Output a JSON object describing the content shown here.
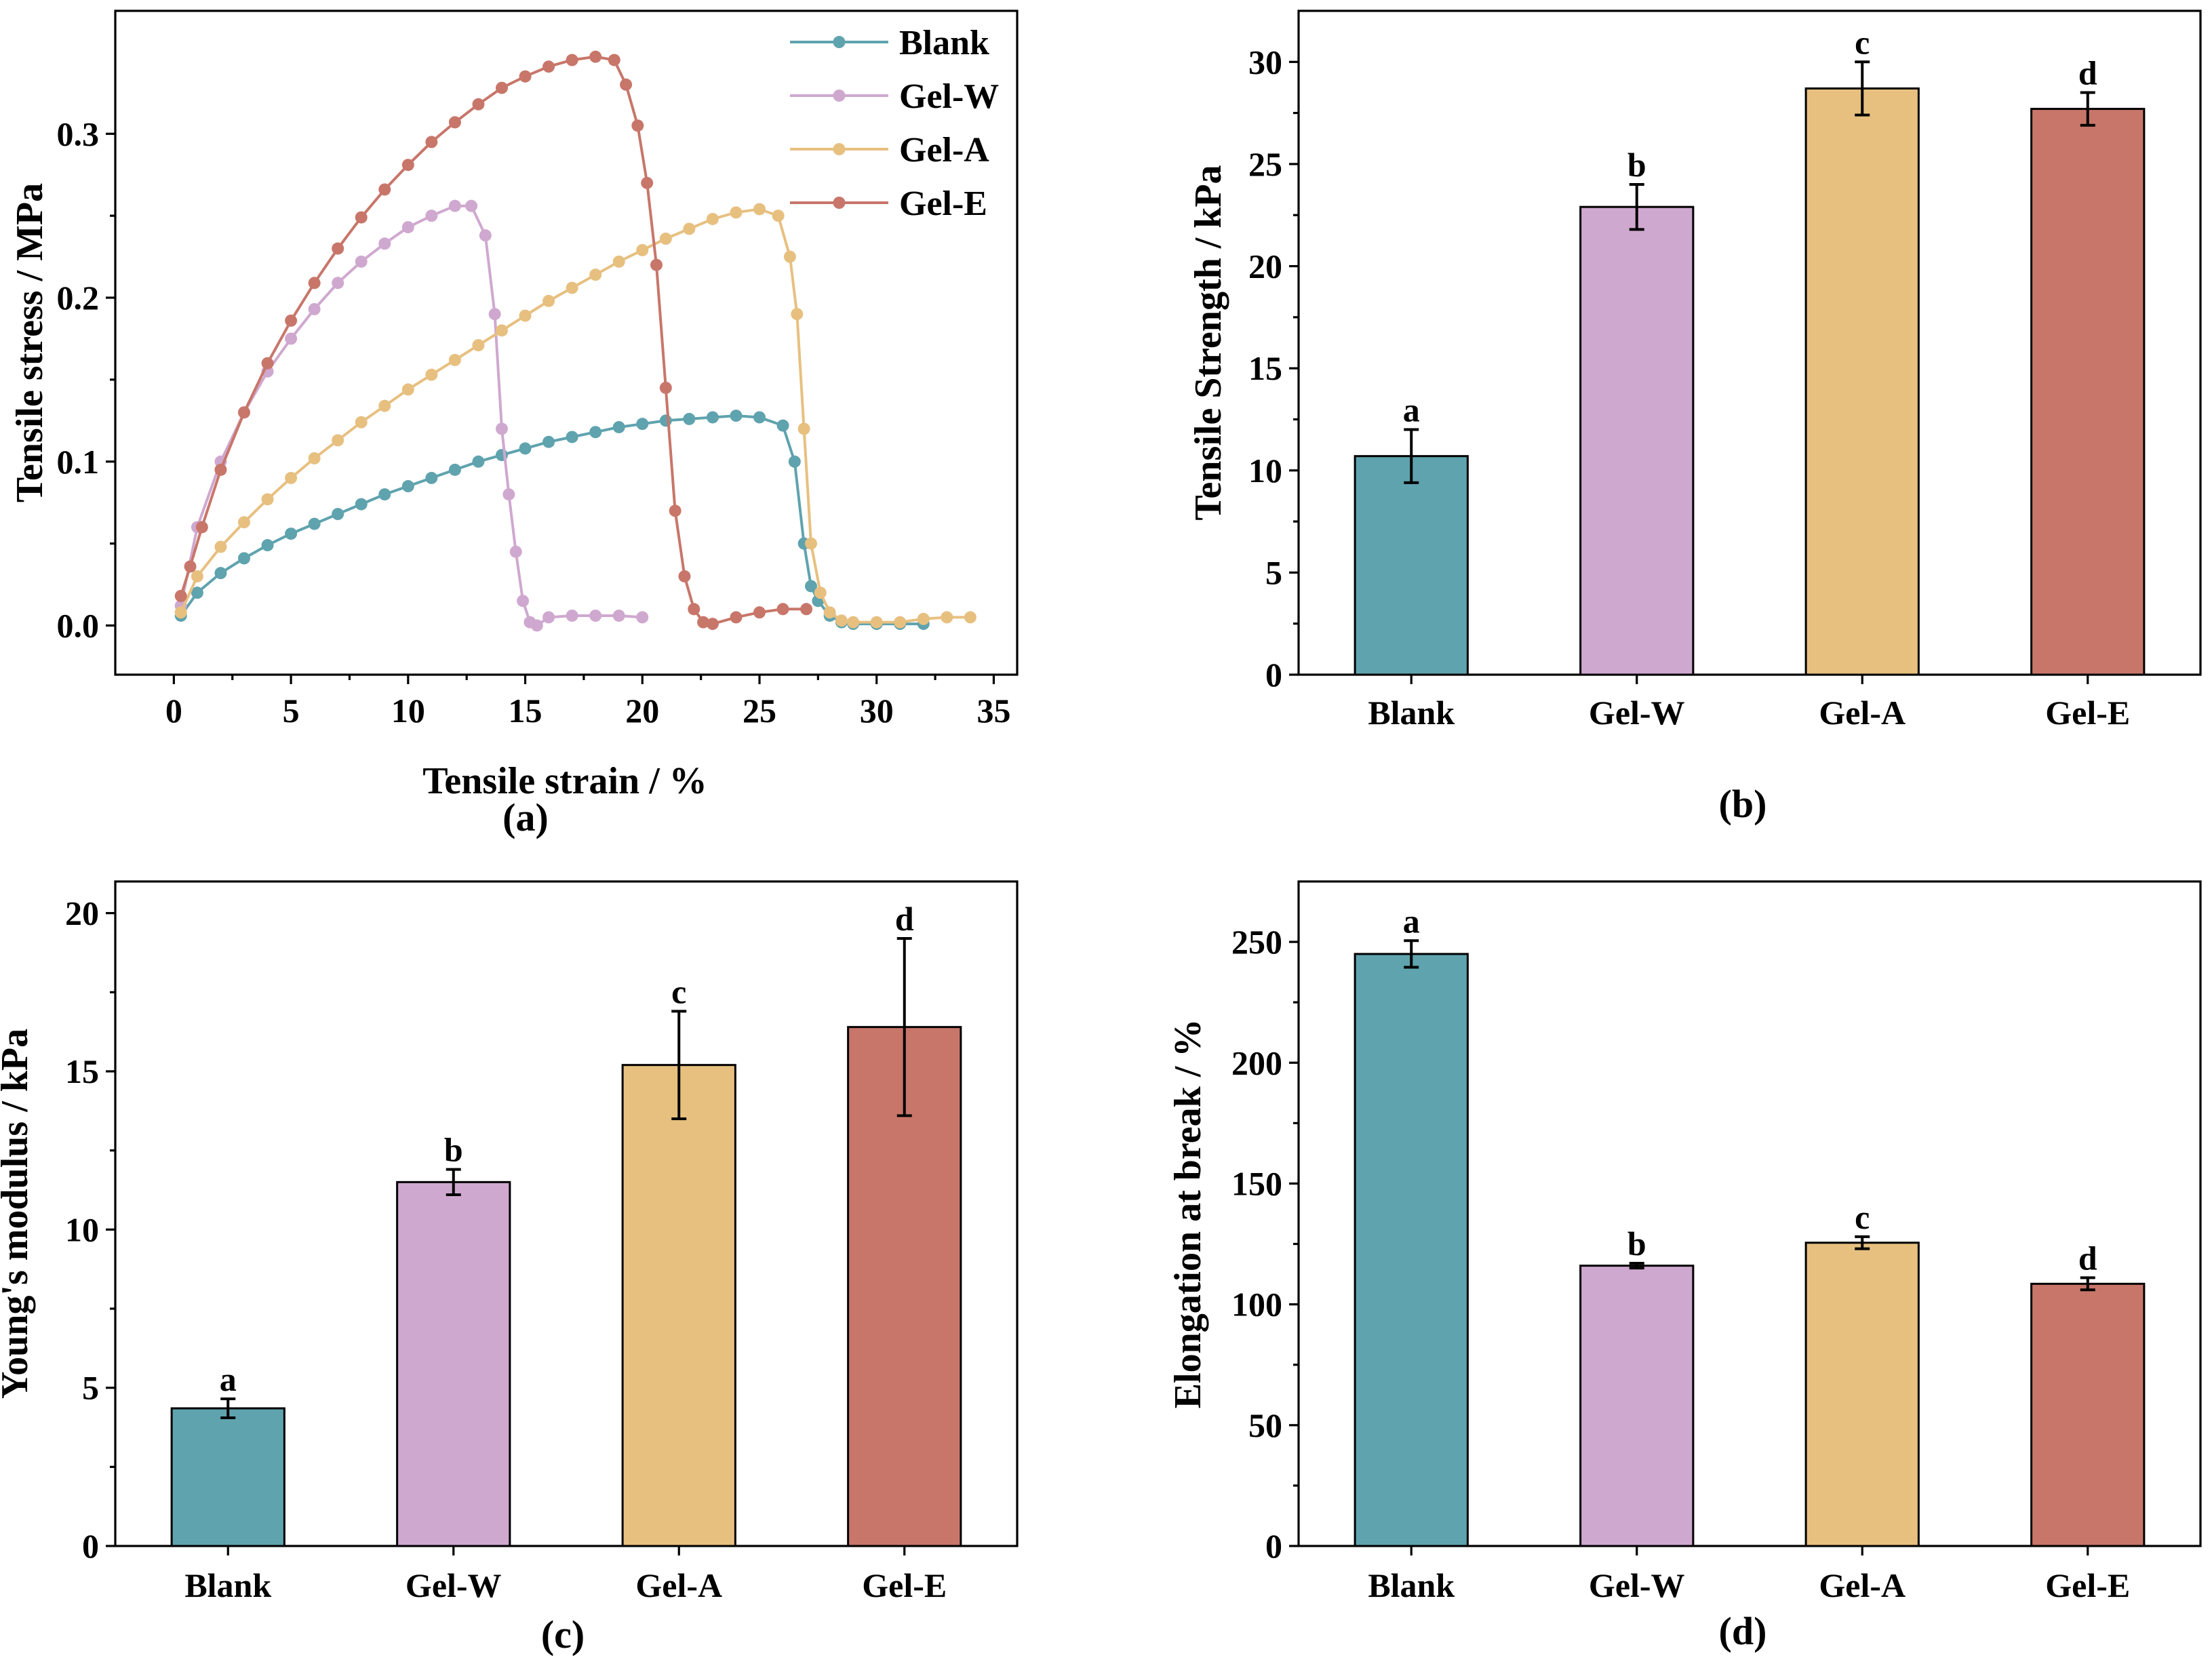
{
  "colors": {
    "Blank": "#5fa3ae",
    "Gel-W": "#cfa8cf",
    "Gel-A": "#e7c080",
    "Gel-E": "#c8766a"
  },
  "chart_data": [
    {
      "id": "a",
      "type": "line",
      "panel_label": "(a)",
      "xlabel": "Tensile strain / %",
      "ylabel": "Tensile stress / MPa",
      "xlim": [
        -2.5,
        36
      ],
      "ylim": [
        -0.03,
        0.375
      ],
      "xticks": [
        0,
        5,
        10,
        15,
        20,
        25,
        30,
        35
      ],
      "yticks": [
        0.0,
        0.1,
        0.2,
        0.3
      ],
      "ytick_labels": [
        "0.0",
        "0.1",
        "0.2",
        "0.3"
      ],
      "legend_position": "top-right",
      "series": [
        {
          "name": "Blank",
          "x": [
            0.3,
            1,
            2,
            3,
            4,
            5,
            6,
            7,
            8,
            9,
            10,
            11,
            12,
            13,
            14,
            15,
            16,
            17,
            18,
            19,
            20,
            21,
            22,
            23,
            24,
            25,
            26,
            26.5,
            26.9,
            27.2,
            27.5,
            28,
            28.5,
            29,
            30,
            31,
            32
          ],
          "y": [
            0.006,
            0.02,
            0.032,
            0.041,
            0.049,
            0.056,
            0.062,
            0.068,
            0.074,
            0.08,
            0.085,
            0.09,
            0.095,
            0.1,
            0.104,
            0.108,
            0.112,
            0.115,
            0.118,
            0.121,
            0.123,
            0.125,
            0.126,
            0.127,
            0.128,
            0.127,
            0.122,
            0.1,
            0.05,
            0.024,
            0.015,
            0.006,
            0.002,
            0.001,
            0.001,
            0.001,
            0.001
          ]
        },
        {
          "name": "Gel-W",
          "x": [
            0.3,
            1,
            2,
            3,
            4,
            5,
            6,
            7,
            8,
            9,
            10,
            11,
            12,
            12.7,
            13.3,
            13.7,
            14.0,
            14.3,
            14.6,
            14.9,
            15.2,
            15.5,
            16,
            17,
            18,
            19,
            20
          ],
          "y": [
            0.012,
            0.06,
            0.1,
            0.13,
            0.155,
            0.175,
            0.193,
            0.209,
            0.222,
            0.233,
            0.243,
            0.25,
            0.256,
            0.256,
            0.238,
            0.19,
            0.12,
            0.08,
            0.045,
            0.015,
            0.002,
            0.0,
            0.005,
            0.006,
            0.006,
            0.006,
            0.005
          ]
        },
        {
          "name": "Gel-A",
          "x": [
            0.3,
            1,
            2,
            3,
            4,
            5,
            6,
            7,
            8,
            9,
            10,
            11,
            12,
            13,
            14,
            15,
            16,
            17,
            18,
            19,
            20,
            21,
            22,
            23,
            24,
            25,
            25.8,
            26.3,
            26.6,
            26.9,
            27.2,
            27.6,
            28,
            28.5,
            29,
            30,
            31,
            32,
            33,
            34
          ],
          "y": [
            0.008,
            0.03,
            0.048,
            0.063,
            0.077,
            0.09,
            0.102,
            0.113,
            0.124,
            0.134,
            0.144,
            0.153,
            0.162,
            0.171,
            0.18,
            0.189,
            0.198,
            0.206,
            0.214,
            0.222,
            0.229,
            0.236,
            0.242,
            0.248,
            0.252,
            0.254,
            0.25,
            0.225,
            0.19,
            0.12,
            0.05,
            0.02,
            0.008,
            0.003,
            0.002,
            0.002,
            0.002,
            0.004,
            0.005,
            0.005
          ]
        },
        {
          "name": "Gel-E",
          "x": [
            0.3,
            0.7,
            1.2,
            2,
            3,
            4,
            5,
            6,
            7,
            8,
            9,
            10,
            11,
            12,
            13,
            14,
            15,
            16,
            17,
            18,
            18.8,
            19.3,
            19.8,
            20.2,
            20.6,
            21,
            21.4,
            21.8,
            22.2,
            22.6,
            23,
            24,
            25,
            26,
            27
          ],
          "y": [
            0.018,
            0.036,
            0.06,
            0.095,
            0.13,
            0.16,
            0.186,
            0.209,
            0.23,
            0.249,
            0.266,
            0.281,
            0.295,
            0.307,
            0.318,
            0.328,
            0.335,
            0.341,
            0.345,
            0.347,
            0.345,
            0.33,
            0.305,
            0.27,
            0.22,
            0.145,
            0.07,
            0.03,
            0.01,
            0.002,
            0.001,
            0.005,
            0.008,
            0.01,
            0.01
          ]
        }
      ]
    },
    {
      "id": "b",
      "type": "bar",
      "panel_label": "(b)",
      "xlabel": "",
      "ylabel": "Tensile Strength  /  kPa",
      "categories": [
        "Blank",
        "Gel-W",
        "Gel-A",
        "Gel-E"
      ],
      "values": [
        10.7,
        22.9,
        28.7,
        27.7
      ],
      "errors": [
        1.3,
        1.1,
        1.3,
        0.8
      ],
      "letters": [
        "a",
        "b",
        "c",
        "d"
      ],
      "ylim": [
        0,
        32.5
      ],
      "yticks": [
        0,
        5,
        10,
        15,
        20,
        25,
        30
      ]
    },
    {
      "id": "c",
      "type": "bar",
      "panel_label": "(c)",
      "xlabel": "",
      "ylabel": "Young's modulus / kPa",
      "categories": [
        "Blank",
        "Gel-W",
        "Gel-A",
        "Gel-E"
      ],
      "values": [
        4.35,
        11.5,
        15.2,
        16.4
      ],
      "errors": [
        0.3,
        0.4,
        1.7,
        2.8
      ],
      "letters": [
        "a",
        "b",
        "c",
        "d"
      ],
      "ylim": [
        0,
        21
      ],
      "yticks": [
        0,
        5,
        10,
        15,
        20
      ]
    },
    {
      "id": "d",
      "type": "bar",
      "panel_label": "(d)",
      "xlabel": "",
      "ylabel": "Elongation at break / %",
      "categories": [
        "Blank",
        "Gel-W",
        "Gel-A",
        "Gel-E"
      ],
      "values": [
        245,
        116,
        125.5,
        108.5
      ],
      "errors": [
        5.5,
        1,
        2.5,
        2.5
      ],
      "letters": [
        "a",
        "b",
        "c",
        "d"
      ],
      "ylim": [
        0,
        275
      ],
      "yticks": [
        0,
        50,
        100,
        150,
        200,
        250
      ]
    }
  ]
}
